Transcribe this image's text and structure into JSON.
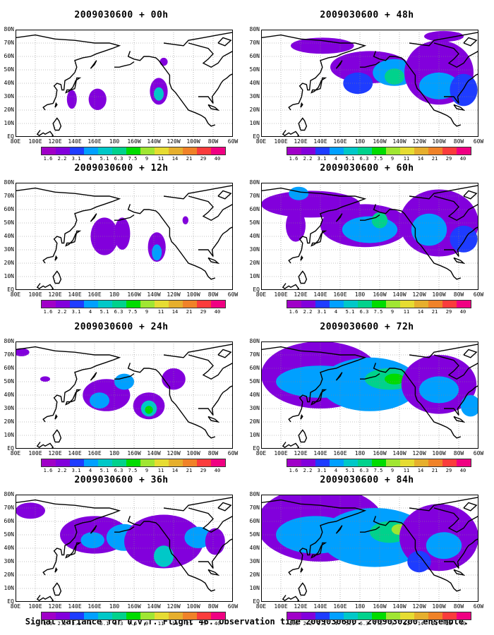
{
  "panels": [
    {
      "title": "2009030600 + 00h",
      "blobs": [
        {
          "lon": 163,
          "lat": 28,
          "rx": 9,
          "ry": 8,
          "lvl": 1
        },
        {
          "lon": 137,
          "lat": 28,
          "rx": 5,
          "ry": 7,
          "lvl": 1
        },
        {
          "lon": -135,
          "lat": 34,
          "rx": 9,
          "ry": 10,
          "lvl": 1
        },
        {
          "lon": -135,
          "lat": 32,
          "rx": 5,
          "ry": 5,
          "lvl": 4
        },
        {
          "lon": -130,
          "lat": 56,
          "rx": 4,
          "ry": 3,
          "lvl": 1
        }
      ]
    },
    {
      "title": "2009030600 + 48h",
      "blobs": [
        {
          "lon": 142,
          "lat": 68,
          "rx": 32,
          "ry": 6,
          "lvl": 1
        },
        {
          "lon": -170,
          "lat": 52,
          "rx": 40,
          "ry": 12,
          "lvl": 1
        },
        {
          "lon": -145,
          "lat": 48,
          "rx": 22,
          "ry": 10,
          "lvl": 3
        },
        {
          "lon": -145,
          "lat": 45,
          "rx": 10,
          "ry": 6,
          "lvl": 5
        },
        {
          "lon": -100,
          "lat": 48,
          "rx": 35,
          "ry": 24,
          "lvl": 1
        },
        {
          "lon": -100,
          "lat": 38,
          "rx": 20,
          "ry": 10,
          "lvl": 3
        },
        {
          "lon": -75,
          "lat": 35,
          "rx": 14,
          "ry": 12,
          "lvl": 2
        },
        {
          "lon": 178,
          "lat": 40,
          "rx": 15,
          "ry": 8,
          "lvl": 2
        },
        {
          "lon": -95,
          "lat": 75,
          "rx": 20,
          "ry": 4,
          "lvl": 1
        }
      ]
    },
    {
      "title": "2009030600 + 12h",
      "blobs": [
        {
          "lon": 170,
          "lat": 40,
          "rx": 14,
          "ry": 14,
          "lvl": 1
        },
        {
          "lon": -172,
          "lat": 42,
          "rx": 8,
          "ry": 12,
          "lvl": 1
        },
        {
          "lon": -137,
          "lat": 32,
          "rx": 9,
          "ry": 11,
          "lvl": 1
        },
        {
          "lon": -137,
          "lat": 28,
          "rx": 5,
          "ry": 6,
          "lvl": 3
        },
        {
          "lon": -108,
          "lat": 52,
          "rx": 3,
          "ry": 3,
          "lvl": 1
        }
      ]
    },
    {
      "title": "2009030600 + 60h",
      "blobs": [
        {
          "lon": 130,
          "lat": 64,
          "rx": 50,
          "ry": 10,
          "lvl": 1
        },
        {
          "lon": 115,
          "lat": 48,
          "rx": 10,
          "ry": 12,
          "lvl": 1
        },
        {
          "lon": -175,
          "lat": 48,
          "rx": 45,
          "ry": 16,
          "lvl": 1
        },
        {
          "lon": -170,
          "lat": 45,
          "rx": 28,
          "ry": 10,
          "lvl": 3
        },
        {
          "lon": -160,
          "lat": 52,
          "rx": 8,
          "ry": 6,
          "lvl": 5
        },
        {
          "lon": -100,
          "lat": 50,
          "rx": 40,
          "ry": 25,
          "lvl": 1
        },
        {
          "lon": -110,
          "lat": 45,
          "rx": 18,
          "ry": 12,
          "lvl": 3
        },
        {
          "lon": -75,
          "lat": 38,
          "rx": 14,
          "ry": 10,
          "lvl": 2
        },
        {
          "lon": 118,
          "lat": 72,
          "rx": 10,
          "ry": 5,
          "lvl": 3
        }
      ]
    },
    {
      "title": "2009030600 + 24h",
      "blobs": [
        {
          "lon": 86,
          "lat": 72,
          "rx": 8,
          "ry": 3,
          "lvl": 1
        },
        {
          "lon": 110,
          "lat": 52,
          "rx": 5,
          "ry": 2,
          "lvl": 1
        },
        {
          "lon": 172,
          "lat": 40,
          "rx": 24,
          "ry": 12,
          "lvl": 1
        },
        {
          "lon": 165,
          "lat": 36,
          "rx": 10,
          "ry": 6,
          "lvl": 3
        },
        {
          "lon": -170,
          "lat": 50,
          "rx": 10,
          "ry": 6,
          "lvl": 3
        },
        {
          "lon": -145,
          "lat": 32,
          "rx": 16,
          "ry": 10,
          "lvl": 1
        },
        {
          "lon": -145,
          "lat": 30,
          "rx": 8,
          "ry": 6,
          "lvl": 4
        },
        {
          "lon": -145,
          "lat": 29,
          "rx": 4,
          "ry": 3,
          "lvl": 6
        },
        {
          "lon": -120,
          "lat": 52,
          "rx": 12,
          "ry": 8,
          "lvl": 1
        }
      ]
    },
    {
      "title": "2009030600 + 72h",
      "blobs": [
        {
          "lon": 140,
          "lat": 55,
          "rx": 60,
          "ry": 25,
          "lvl": 1
        },
        {
          "lon": 140,
          "lat": 50,
          "rx": 45,
          "ry": 12,
          "lvl": 3
        },
        {
          "lon": -170,
          "lat": 48,
          "rx": 50,
          "ry": 20,
          "lvl": 3
        },
        {
          "lon": -150,
          "lat": 52,
          "rx": 25,
          "ry": 8,
          "lvl": 5
        },
        {
          "lon": -145,
          "lat": 52,
          "rx": 10,
          "ry": 4,
          "lvl": 6
        },
        {
          "lon": -100,
          "lat": 48,
          "rx": 38,
          "ry": 22,
          "lvl": 1
        },
        {
          "lon": -100,
          "lat": 44,
          "rx": 20,
          "ry": 10,
          "lvl": 3
        },
        {
          "lon": -68,
          "lat": 32,
          "rx": 10,
          "ry": 8,
          "lvl": 3
        }
      ]
    },
    {
      "title": "2009030600 + 36h",
      "blobs": [
        {
          "lon": 95,
          "lat": 68,
          "rx": 15,
          "ry": 6,
          "lvl": 1
        },
        {
          "lon": 160,
          "lat": 50,
          "rx": 35,
          "ry": 14,
          "lvl": 1
        },
        {
          "lon": 158,
          "lat": 46,
          "rx": 12,
          "ry": 6,
          "lvl": 3
        },
        {
          "lon": -170,
          "lat": 48,
          "rx": 18,
          "ry": 10,
          "lvl": 3
        },
        {
          "lon": -130,
          "lat": 45,
          "rx": 40,
          "ry": 20,
          "lvl": 1
        },
        {
          "lon": -130,
          "lat": 34,
          "rx": 10,
          "ry": 8,
          "lvl": 4
        },
        {
          "lon": -95,
          "lat": 48,
          "rx": 14,
          "ry": 8,
          "lvl": 3
        },
        {
          "lon": -78,
          "lat": 45,
          "rx": 10,
          "ry": 10,
          "lvl": 1
        }
      ]
    },
    {
      "title": "2009030600 + 84h",
      "blobs": [
        {
          "lon": 140,
          "lat": 58,
          "rx": 65,
          "ry": 28,
          "lvl": 1
        },
        {
          "lon": 135,
          "lat": 50,
          "rx": 40,
          "ry": 14,
          "lvl": 3
        },
        {
          "lon": -165,
          "lat": 48,
          "rx": 55,
          "ry": 22,
          "lvl": 3
        },
        {
          "lon": -150,
          "lat": 52,
          "rx": 20,
          "ry": 8,
          "lvl": 5
        },
        {
          "lon": -140,
          "lat": 54,
          "rx": 8,
          "ry": 4,
          "lvl": 7
        },
        {
          "lon": -100,
          "lat": 48,
          "rx": 40,
          "ry": 25,
          "lvl": 1
        },
        {
          "lon": -95,
          "lat": 42,
          "rx": 18,
          "ry": 10,
          "lvl": 3
        },
        {
          "lon": -120,
          "lat": 30,
          "rx": 12,
          "ry": 8,
          "lvl": 2
        }
      ]
    }
  ],
  "lat_labels": [
    "80N",
    "70N",
    "60N",
    "50N",
    "40N",
    "30N",
    "20N",
    "10N",
    "EQ"
  ],
  "lon_labels": [
    "80E",
    "100E",
    "120E",
    "140E",
    "160E",
    "180",
    "160W",
    "140W",
    "120W",
    "100W",
    "80W",
    "60W"
  ],
  "colorbar": {
    "levels": [
      "1.6",
      "2.2",
      "3.1",
      "4",
      "5.1",
      "6.3",
      "7.5",
      "9",
      "11",
      "14",
      "21",
      "29",
      "40"
    ],
    "colors": [
      "#a000c8",
      "#8200dc",
      "#1e3cff",
      "#00a0ff",
      "#00c8c8",
      "#00d28c",
      "#00dc00",
      "#a0e632",
      "#e6dc32",
      "#e6af2d",
      "#f08228",
      "#fa3c3c",
      "#f00082"
    ]
  },
  "caption": "Signal Variance for u,v,T. Flight 46. Observation time 2009030600. 2009030200 ensemble."
}
